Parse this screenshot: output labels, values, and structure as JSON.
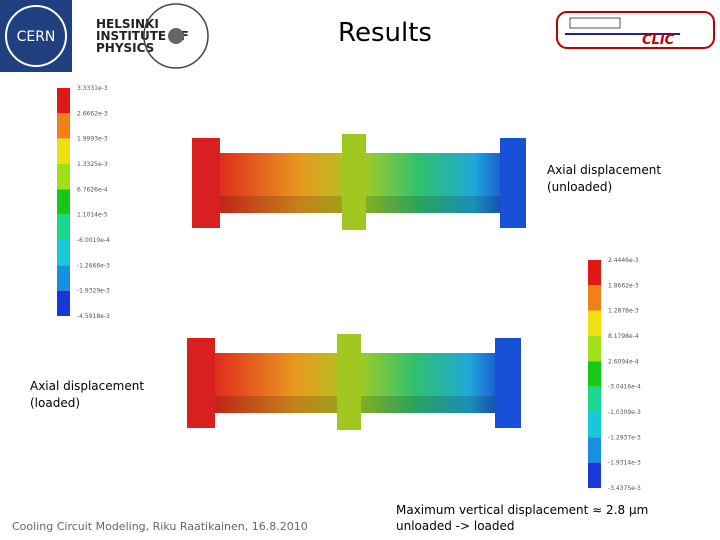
{
  "header": {
    "title": "Results",
    "logos": {
      "cern": "CERN",
      "hip": [
        "HELSINKI",
        "INSTITUTE OF",
        "PHYSICS"
      ],
      "clic": "CLIC"
    }
  },
  "figures": [
    {
      "label": [
        "Axial displacement",
        "(unloaded)"
      ],
      "colorbar": [
        "3.3331e-3",
        "2.6662e-3",
        "1.9993e-3",
        "1.3325e-3",
        "6.7626e-4",
        "1.1014e-5",
        "-6.0010e-4",
        "-1.2666e-3",
        "-1.9329e-3",
        "-4.5918e-3"
      ]
    },
    {
      "label": [
        "Axial displacement",
        "(loaded)"
      ],
      "colorbar": [
        "2.4446e-3",
        "1.8662e-3",
        "1.2878e-3",
        "8.1798e-4",
        "2.6094e-4",
        "-3.0416e-4",
        "-1.0309e-3",
        "-1.2937e-3",
        "-1.9314e-3",
        "-3.4375e-3"
      ]
    }
  ],
  "footer": {
    "left": "Cooling Circuit Modeling, Riku Raatikainen, 16.8.2010",
    "right": [
      "Maximum vertical displacement ≈ 2.8 μm",
      "unloaded -> loaded"
    ]
  }
}
